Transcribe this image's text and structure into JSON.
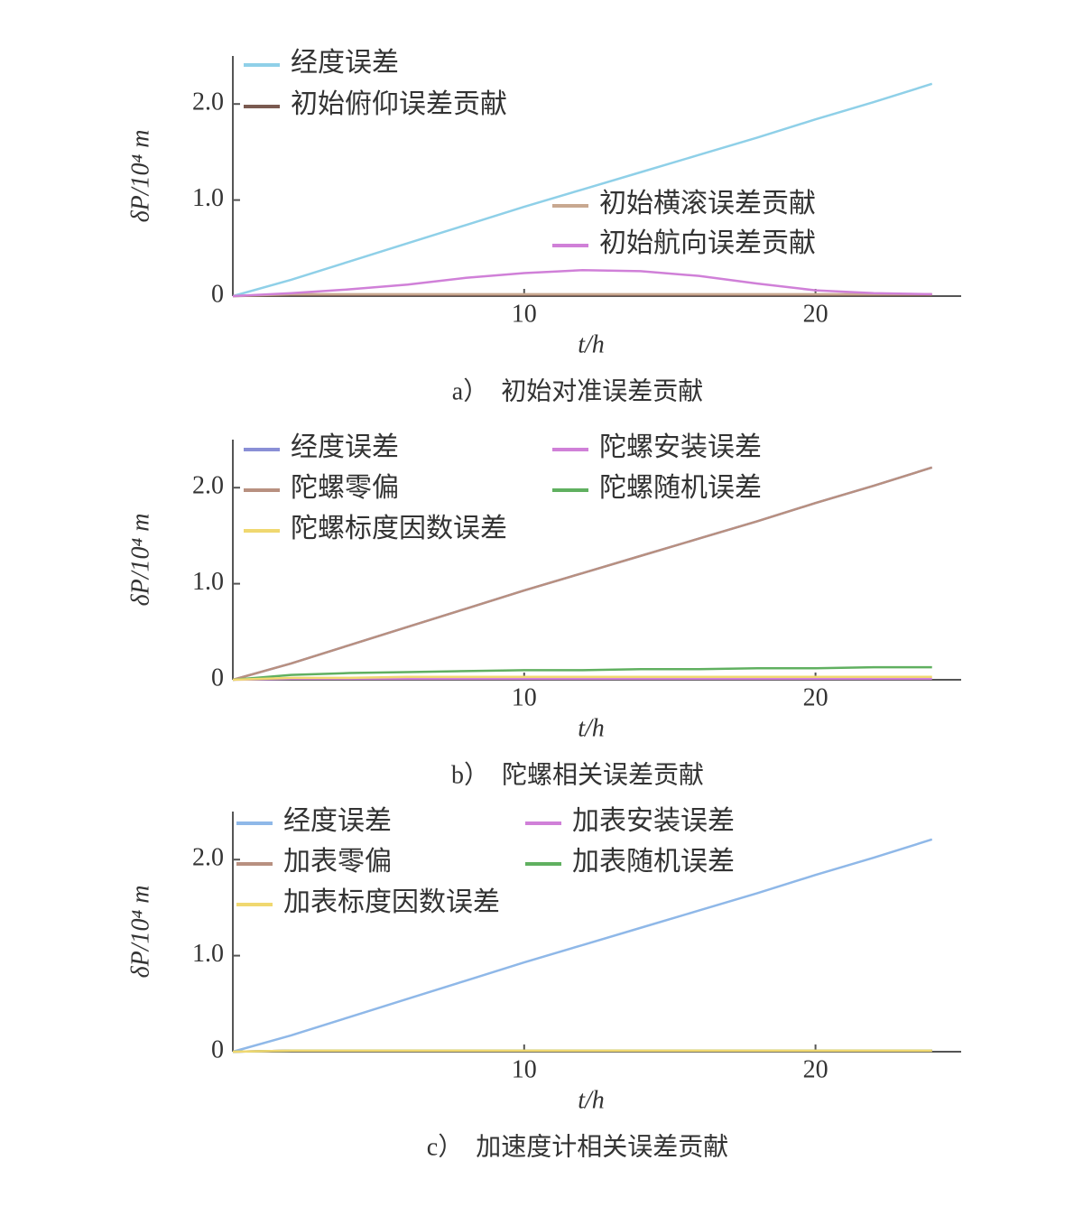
{
  "chart_data": [
    {
      "type": "line",
      "caption": "a）　初始对准误差贡献",
      "xlabel": "t/h",
      "ylabel": "δP/10⁴ m",
      "x": [
        0,
        2,
        4,
        6,
        8,
        10,
        12,
        14,
        16,
        18,
        20,
        22,
        24
      ],
      "xlim": [
        0,
        25
      ],
      "xticks": [
        10,
        20
      ],
      "ylim": [
        0,
        2.5
      ],
      "yticks": [
        0,
        {
          "value": 1,
          "label": "1.0"
        },
        {
          "value": 2,
          "label": "2.0"
        }
      ],
      "series": [
        {
          "name": "经度误差",
          "color": "#8fd0e8",
          "values": [
            0,
            0.17,
            0.36,
            0.55,
            0.74,
            0.93,
            1.11,
            1.29,
            1.47,
            1.65,
            1.84,
            2.02,
            2.21
          ]
        },
        {
          "name": "初始俯仰误差贡献",
          "color": "#7a5a50",
          "values": [
            0,
            0.01,
            0.01,
            0.01,
            0.01,
            0.01,
            0.01,
            0.01,
            0.01,
            0.01,
            0.01,
            0.01,
            0.01
          ]
        },
        {
          "name": "初始横滚误差贡献",
          "color": "#c8a890",
          "values": [
            0,
            0.02,
            0.02,
            0.02,
            0.02,
            0.02,
            0.02,
            0.02,
            0.02,
            0.02,
            0.02,
            0.02,
            0.02
          ]
        },
        {
          "name": "初始航向误差贡献",
          "color": "#d080d8",
          "values": [
            0,
            0.03,
            0.07,
            0.12,
            0.19,
            0.24,
            0.27,
            0.26,
            0.21,
            0.13,
            0.06,
            0.03,
            0.02
          ]
        }
      ]
    },
    {
      "type": "line",
      "caption": "b）　陀螺相关误差贡献",
      "xlabel": "t/h",
      "ylabel": "δP/10⁴ m",
      "x": [
        0,
        2,
        4,
        6,
        8,
        10,
        12,
        14,
        16,
        18,
        20,
        22,
        24
      ],
      "xlim": [
        0,
        25
      ],
      "xticks": [
        10,
        20
      ],
      "ylim": [
        0,
        2.5
      ],
      "yticks": [
        0,
        {
          "value": 1,
          "label": "1.0"
        },
        {
          "value": 2,
          "label": "2.0"
        }
      ],
      "series": [
        {
          "name": "经度误差",
          "color": "#8a8fd6",
          "values": [
            0,
            0.17,
            0.36,
            0.55,
            0.74,
            0.93,
            1.11,
            1.29,
            1.47,
            1.65,
            1.84,
            2.02,
            2.21
          ]
        },
        {
          "name": "陀螺安装误差",
          "color": "#d080d8",
          "values": [
            0,
            0.01,
            0.01,
            0.01,
            0.01,
            0.01,
            0.01,
            0.01,
            0.01,
            0.01,
            0.01,
            0.01,
            0.01
          ]
        },
        {
          "name": "陀螺零偏",
          "color": "#b89080",
          "values": [
            0,
            0.17,
            0.36,
            0.55,
            0.74,
            0.93,
            1.11,
            1.29,
            1.47,
            1.65,
            1.84,
            2.02,
            2.21
          ]
        },
        {
          "name": "陀螺随机误差",
          "color": "#60b060",
          "values": [
            0,
            0.05,
            0.07,
            0.08,
            0.09,
            0.1,
            0.1,
            0.11,
            0.11,
            0.12,
            0.12,
            0.13,
            0.13
          ]
        },
        {
          "name": "陀螺标度因数误差",
          "color": "#f0d870",
          "values": [
            0,
            0.02,
            0.02,
            0.03,
            0.03,
            0.03,
            0.03,
            0.03,
            0.03,
            0.03,
            0.03,
            0.03,
            0.03
          ]
        }
      ]
    },
    {
      "type": "line",
      "caption": "c）　加速度计相关误差贡献",
      "xlabel": "t/h",
      "ylabel": "δP/10⁴ m",
      "x": [
        0,
        2,
        4,
        6,
        8,
        10,
        12,
        14,
        16,
        18,
        20,
        22,
        24
      ],
      "xlim": [
        0,
        25
      ],
      "xticks": [
        10,
        20
      ],
      "ylim": [
        0,
        2.5
      ],
      "yticks": [
        0,
        {
          "value": 1,
          "label": "1.0"
        },
        {
          "value": 2,
          "label": "2.0"
        }
      ],
      "series": [
        {
          "name": "经度误差",
          "color": "#8fb8e8",
          "values": [
            0,
            0.17,
            0.36,
            0.55,
            0.74,
            0.93,
            1.11,
            1.29,
            1.47,
            1.65,
            1.84,
            2.02,
            2.21
          ]
        },
        {
          "name": "加表安装误差",
          "color": "#d080d8",
          "values": [
            0,
            0.01,
            0.01,
            0.01,
            0.01,
            0.01,
            0.01,
            0.01,
            0.01,
            0.01,
            0.01,
            0.01,
            0.01
          ]
        },
        {
          "name": "加表零偏",
          "color": "#b89080",
          "values": [
            0,
            0.01,
            0.01,
            0.01,
            0.01,
            0.01,
            0.01,
            0.01,
            0.01,
            0.01,
            0.01,
            0.01,
            0.01
          ]
        },
        {
          "name": "加表随机误差",
          "color": "#60b060",
          "values": [
            0,
            0.01,
            0.01,
            0.01,
            0.01,
            0.01,
            0.01,
            0.01,
            0.01,
            0.01,
            0.01,
            0.01,
            0.01
          ]
        },
        {
          "name": "加表标度因数误差",
          "color": "#f0d870",
          "values": [
            0,
            0.01,
            0.01,
            0.01,
            0.01,
            0.01,
            0.01,
            0.01,
            0.01,
            0.01,
            0.01,
            0.01,
            0.01
          ]
        }
      ]
    }
  ]
}
